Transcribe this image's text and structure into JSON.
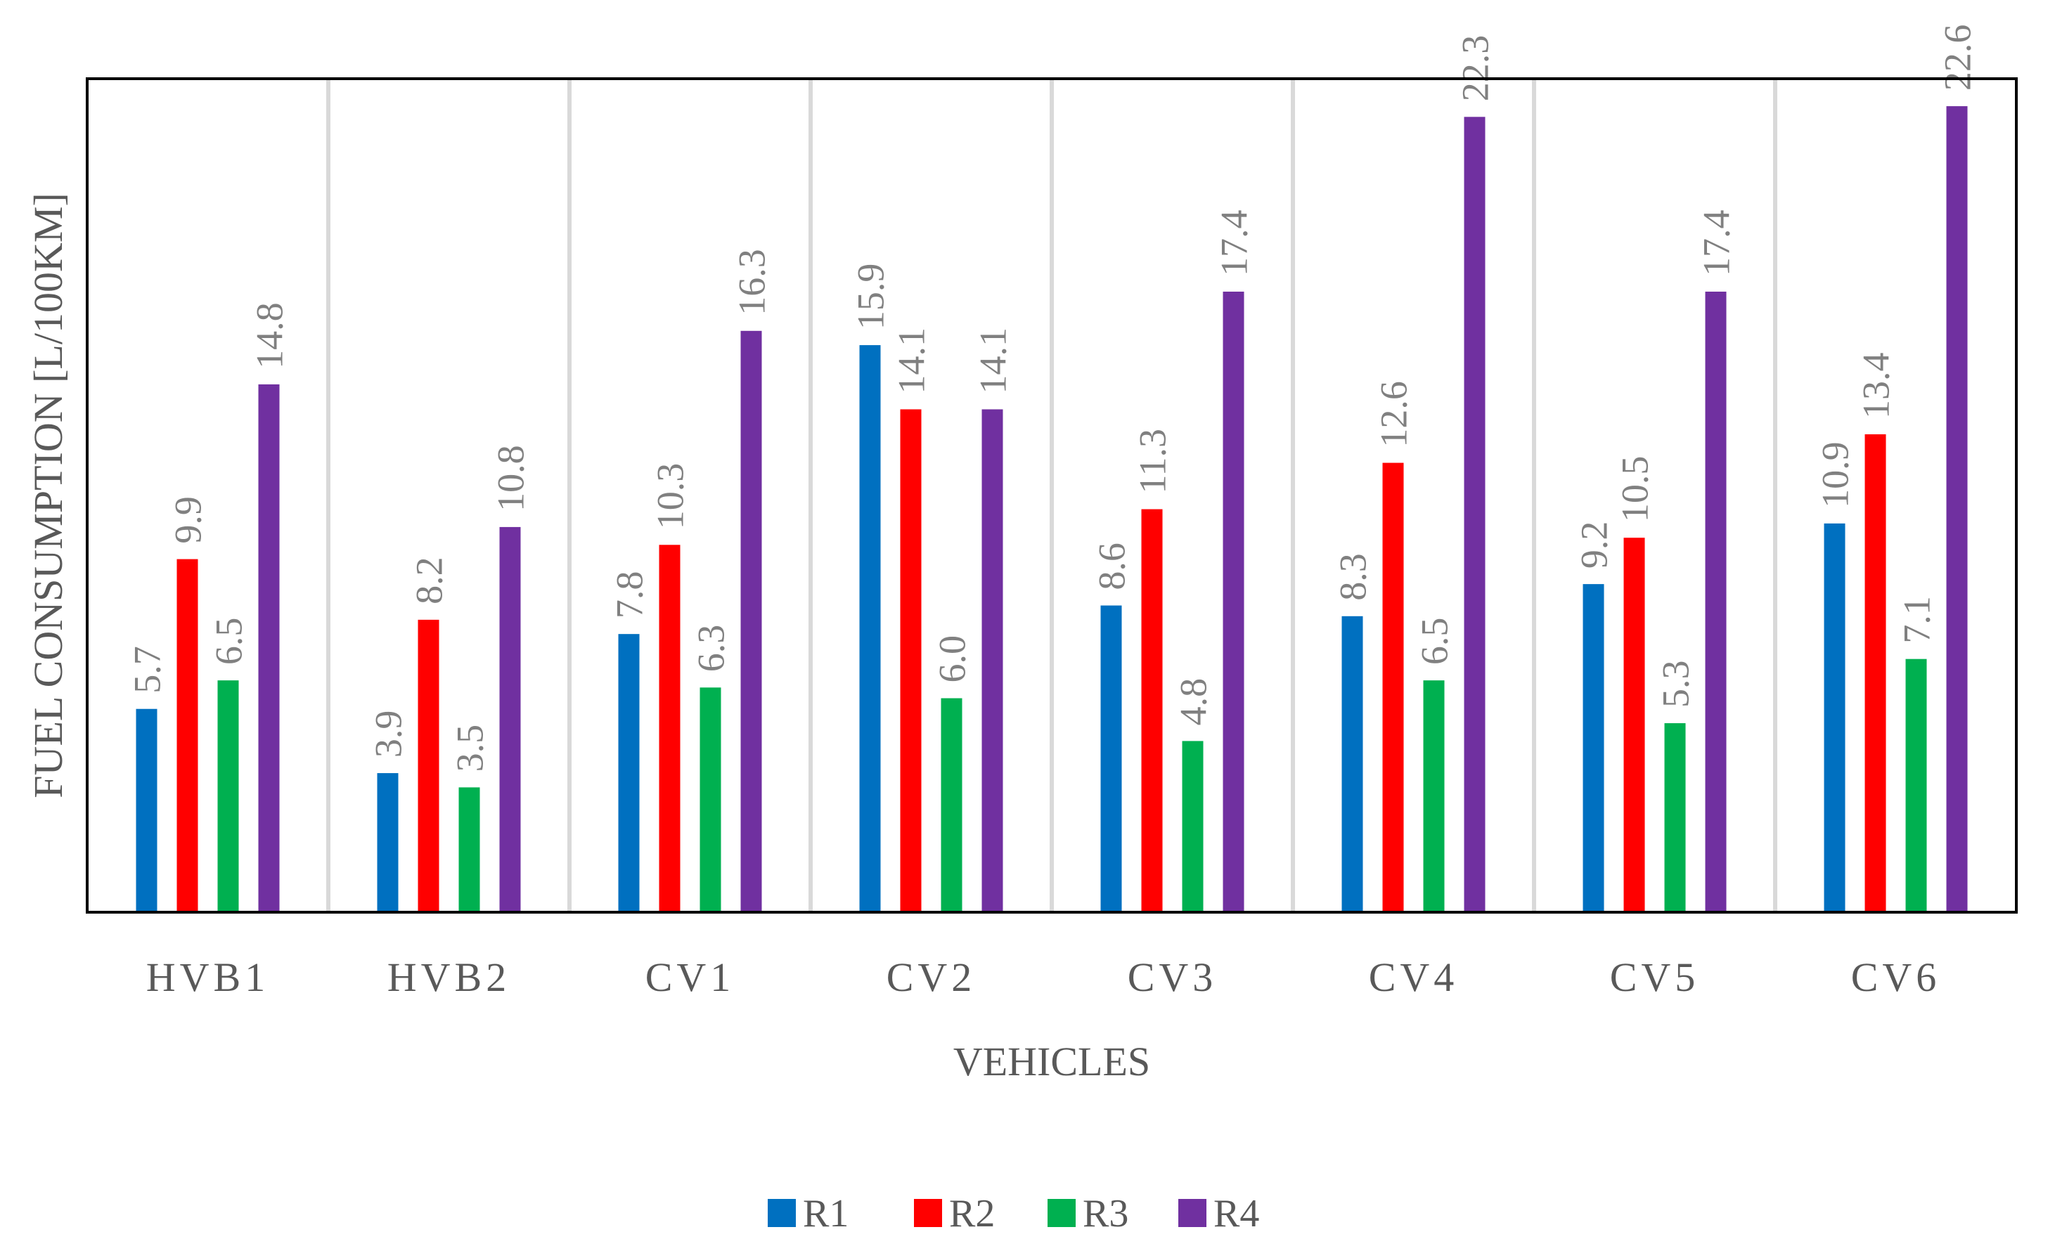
{
  "chart_data": {
    "type": "bar",
    "title": "",
    "xlabel": "VEHICLES",
    "ylabel": "FUEL CONSUMPTION [L/100KM]",
    "ylim": [
      0,
      24
    ],
    "grid": "vertical separators",
    "legend_position": "bottom",
    "categories": [
      "HVB1",
      "HVB2",
      "CV1",
      "CV2",
      "CV3",
      "CV4",
      "CV5",
      "CV6"
    ],
    "series": [
      {
        "name": "R1",
        "color": "#0070C0",
        "values": [
          5.7,
          3.9,
          7.8,
          15.9,
          8.6,
          8.3,
          9.2,
          10.9
        ],
        "labels": [
          "5.7",
          "3.9",
          "7.8",
          "15.9",
          "8.6",
          "8.3",
          "9.2",
          "10.9"
        ]
      },
      {
        "name": "R2",
        "color": "#FF0000",
        "values": [
          9.9,
          8.2,
          10.3,
          14.1,
          11.3,
          12.6,
          10.5,
          13.4
        ],
        "labels": [
          "9.9",
          "8.2",
          "10.3",
          "14.1",
          "11.3",
          "12.6",
          "10.5",
          "13.4"
        ]
      },
      {
        "name": "R3",
        "color": "#00B050",
        "values": [
          6.5,
          3.5,
          6.3,
          6.0,
          4.8,
          6.5,
          5.3,
          7.1
        ],
        "labels": [
          "6.5",
          "3.5",
          "6.3",
          "6.0",
          "4.8",
          "6.5",
          "5.3",
          "7.1"
        ]
      },
      {
        "name": "R4",
        "color": "#7030A0",
        "values": [
          14.8,
          10.8,
          16.3,
          14.1,
          17.4,
          22.3,
          17.4,
          22.6
        ],
        "labels": [
          "14.8",
          "10.8",
          "16.3",
          "14.1",
          "17.4",
          "22.3",
          "17.4",
          "22.6"
        ]
      }
    ]
  }
}
